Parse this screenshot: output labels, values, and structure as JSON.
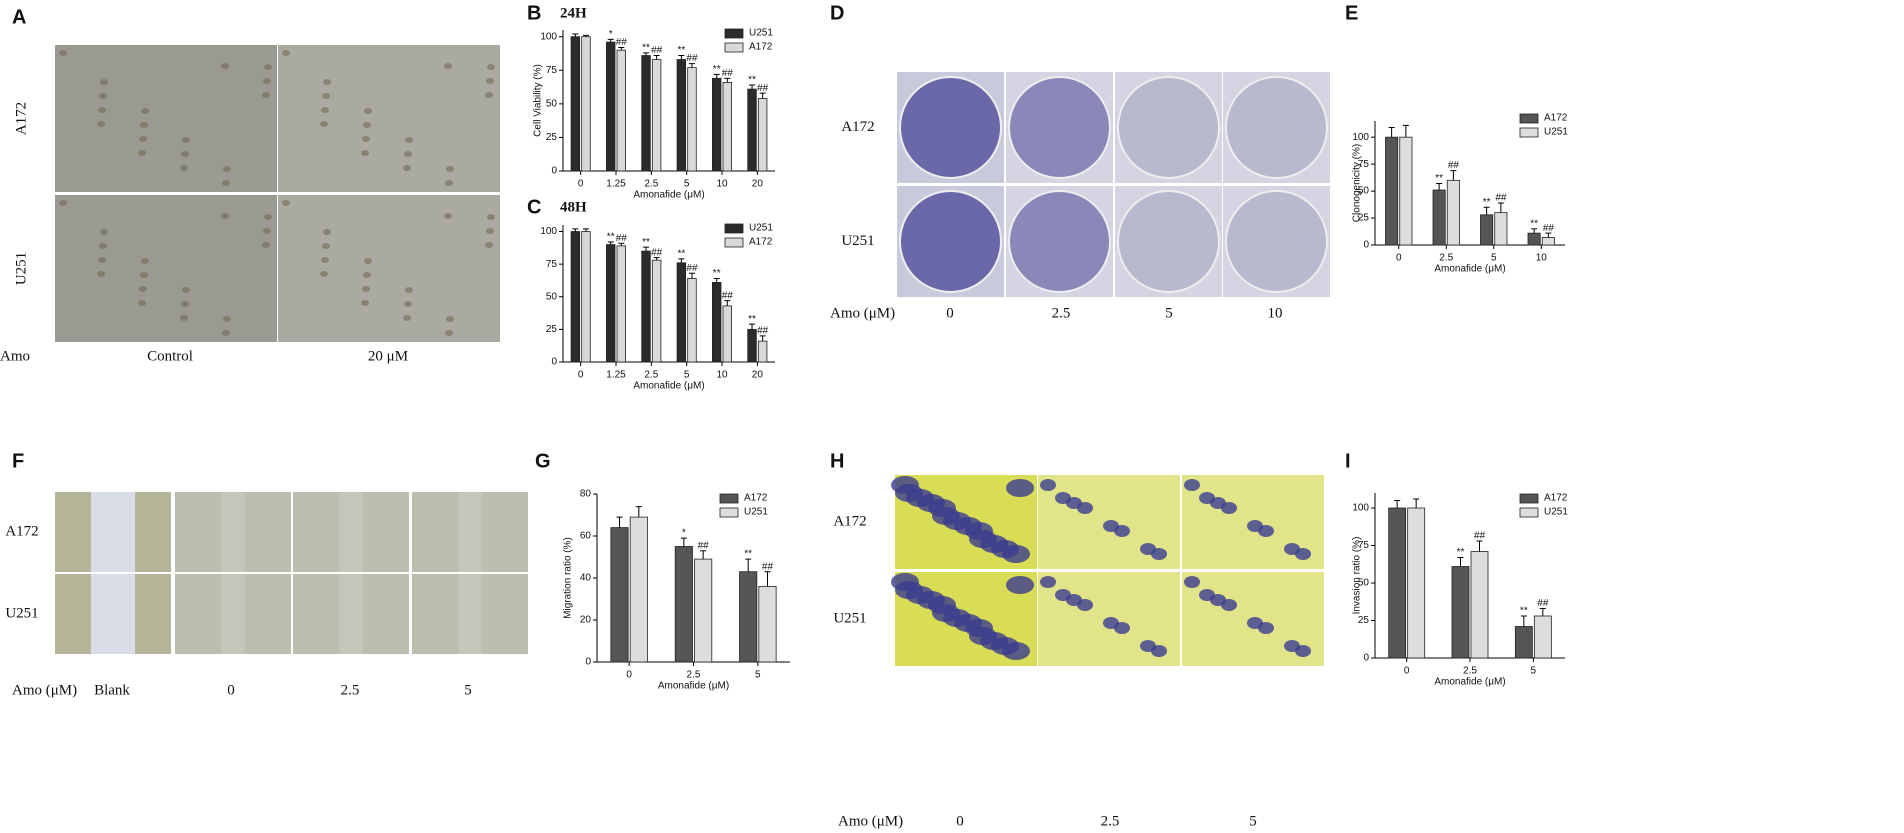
{
  "image_panels": [
    {
      "panel": "A",
      "rows": [
        "A172",
        "U251"
      ],
      "treatment_label": "Amo",
      "columns": [
        "Control",
        "20 μM"
      ]
    },
    {
      "panel": "D",
      "rows": [
        "A172",
        "U251"
      ],
      "treatment_label": "Amo (μM)",
      "columns": [
        "0",
        "2.5",
        "5",
        "10"
      ]
    },
    {
      "panel": "F",
      "rows": [
        "A172",
        "U251"
      ],
      "treatment_label": "Amo (μM)",
      "columns": [
        "Blank",
        "0",
        "2.5",
        "5"
      ]
    },
    {
      "panel": "H",
      "rows": [
        "A172",
        "U251"
      ],
      "treatment_label": "Amo (μM)",
      "columns": [
        "0",
        "2.5",
        "5"
      ]
    }
  ],
  "chart_data": [
    {
      "type": "bar",
      "panel": "B",
      "title": "24H",
      "x_label": "Amonafide (μM)",
      "y_label": "Cell Viability (%)",
      "categories": [
        "0",
        "1.25",
        "2.5",
        "5",
        "10",
        "20"
      ],
      "ylim": [
        0,
        105
      ],
      "yticks": [
        0,
        25,
        50,
        75,
        100
      ],
      "series": [
        {
          "name": "U251",
          "color": "#2b2b2b",
          "values": [
            100,
            96,
            86,
            83,
            69,
            61
          ],
          "errors": [
            2,
            2,
            2,
            3,
            3,
            3
          ],
          "significance": [
            null,
            "*",
            "**",
            "**",
            "**",
            "**"
          ]
        },
        {
          "name": "A172",
          "color": "#d9d9d9",
          "values": [
            100,
            90,
            83,
            77,
            66,
            54
          ],
          "errors": [
            1,
            2,
            3,
            3,
            3,
            4
          ],
          "significance": [
            null,
            "##",
            "##",
            "##",
            "##",
            "##"
          ]
        }
      ]
    },
    {
      "type": "bar",
      "panel": "C",
      "title": "48H",
      "x_label": "Amonafide (μM)",
      "categories": [
        "0",
        "1.25",
        "2.5",
        "5",
        "10",
        "20"
      ],
      "ylim": [
        0,
        105
      ],
      "yticks": [
        0,
        25,
        50,
        75,
        100
      ],
      "series": [
        {
          "name": "U251",
          "color": "#2b2b2b",
          "values": [
            100,
            90,
            85,
            76,
            61,
            25
          ],
          "errors": [
            2,
            2,
            3,
            3,
            3,
            4
          ],
          "significance": [
            null,
            "**",
            "**",
            "**",
            "**",
            "**"
          ]
        },
        {
          "name": "A172",
          "color": "#d9d9d9",
          "values": [
            100,
            89,
            78,
            64,
            43,
            16
          ],
          "errors": [
            2,
            2,
            2,
            4,
            4,
            4
          ],
          "significance": [
            null,
            "##",
            "##",
            "##",
            "##",
            "##"
          ]
        }
      ]
    },
    {
      "type": "bar",
      "panel": "E",
      "x_label": "Amonafide (μM)",
      "y_label": "Clonogenicity (%)",
      "categories": [
        "0",
        "2.5",
        "5",
        "10"
      ],
      "ylim": [
        0,
        115
      ],
      "yticks": [
        0,
        25,
        50,
        75,
        100
      ],
      "series": [
        {
          "name": "A172",
          "color": "#555555",
          "values": [
            100,
            51,
            28,
            11
          ],
          "errors": [
            9,
            6,
            7,
            4
          ],
          "significance": [
            null,
            "**",
            "**",
            "**"
          ]
        },
        {
          "name": "U251",
          "color": "#dddddd",
          "values": [
            100,
            60,
            30,
            7
          ],
          "errors": [
            11,
            9,
            9,
            4
          ],
          "significance": [
            null,
            "##",
            "##",
            "##"
          ]
        }
      ]
    },
    {
      "type": "bar",
      "panel": "G",
      "x_label": "Amonafide (μM)",
      "y_label": "Migration ratio (%)",
      "categories": [
        "0",
        "2.5",
        "5"
      ],
      "ylim": [
        0,
        80
      ],
      "yticks": [
        0,
        20,
        40,
        60,
        80
      ],
      "series": [
        {
          "name": "A172",
          "color": "#555555",
          "values": [
            64,
            55,
            43
          ],
          "errors": [
            5,
            4,
            6
          ],
          "significance": [
            null,
            "*",
            "**"
          ]
        },
        {
          "name": "U251",
          "color": "#dddddd",
          "values": [
            69,
            49,
            36
          ],
          "errors": [
            5,
            4,
            7
          ],
          "significance": [
            null,
            "##",
            "##"
          ]
        }
      ]
    },
    {
      "type": "bar",
      "panel": "I",
      "x_label": "Amonafide (μM)",
      "y_label": "Invasion ratio (%)",
      "categories": [
        "0",
        "2.5",
        "5"
      ],
      "ylim": [
        0,
        110
      ],
      "yticks": [
        0,
        25,
        50,
        75,
        100
      ],
      "series": [
        {
          "name": "A172",
          "color": "#555555",
          "values": [
            100,
            61,
            21
          ],
          "errors": [
            5,
            6,
            7
          ],
          "significance": [
            null,
            "**",
            "**"
          ]
        },
        {
          "name": "U251",
          "color": "#dddddd",
          "values": [
            100,
            71,
            28
          ],
          "errors": [
            6,
            7,
            5
          ],
          "significance": [
            null,
            "##",
            "##"
          ]
        }
      ]
    }
  ]
}
